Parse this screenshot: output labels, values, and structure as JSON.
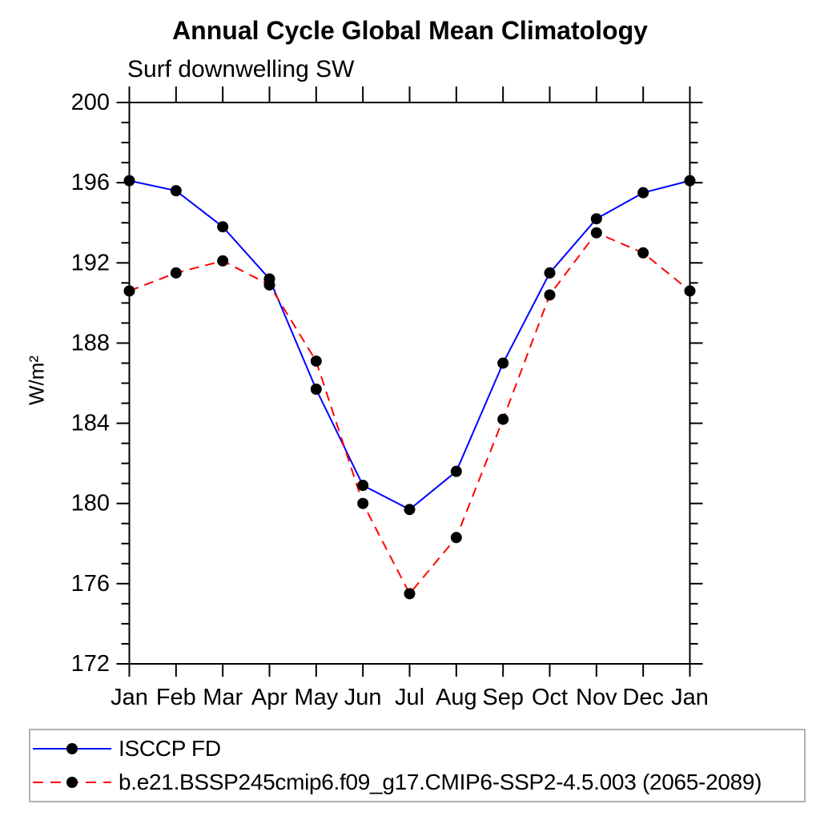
{
  "chart_data": {
    "type": "line",
    "title": "Annual Cycle Global Mean Climatology",
    "subtitle": "Surf downwelling SW",
    "ylabel": "W/m²",
    "xlabel": "",
    "x_tick_labels": [
      "Jan",
      "Feb",
      "Mar",
      "Apr",
      "May",
      "Jun",
      "Jul",
      "Aug",
      "Sep",
      "Oct",
      "Nov",
      "Dec",
      "Jan"
    ],
    "ylim": [
      172,
      200
    ],
    "y_major_tick_step": 4,
    "y_minor_tick_step": 1,
    "y_tick_labels": [
      "172",
      "176",
      "180",
      "184",
      "188",
      "192",
      "196",
      "200"
    ],
    "grid": false,
    "legend_position": "bottom box",
    "axis_color": "#000000",
    "marker_color": "#000000",
    "legend_border_color": "#b0b0b0",
    "series": [
      {
        "name": "ISCCP FD",
        "color": "#0000ff",
        "line_style": "solid",
        "marker": "filled-circle",
        "values": [
          196.1,
          195.6,
          193.8,
          191.2,
          185.7,
          180.9,
          179.7,
          181.6,
          187.0,
          191.5,
          194.2,
          195.5,
          196.1
        ]
      },
      {
        "name": "b.e21.BSSP245cmip6.f09_g17.CMIP6-SSP2-4.5.003 (2065-2089)",
        "color": "#ff0000",
        "line_style": "dashed",
        "marker": "filled-circle",
        "values": [
          190.6,
          191.5,
          192.1,
          190.9,
          187.1,
          180.0,
          175.5,
          178.3,
          184.2,
          190.4,
          193.5,
          192.5,
          190.6
        ]
      }
    ]
  }
}
